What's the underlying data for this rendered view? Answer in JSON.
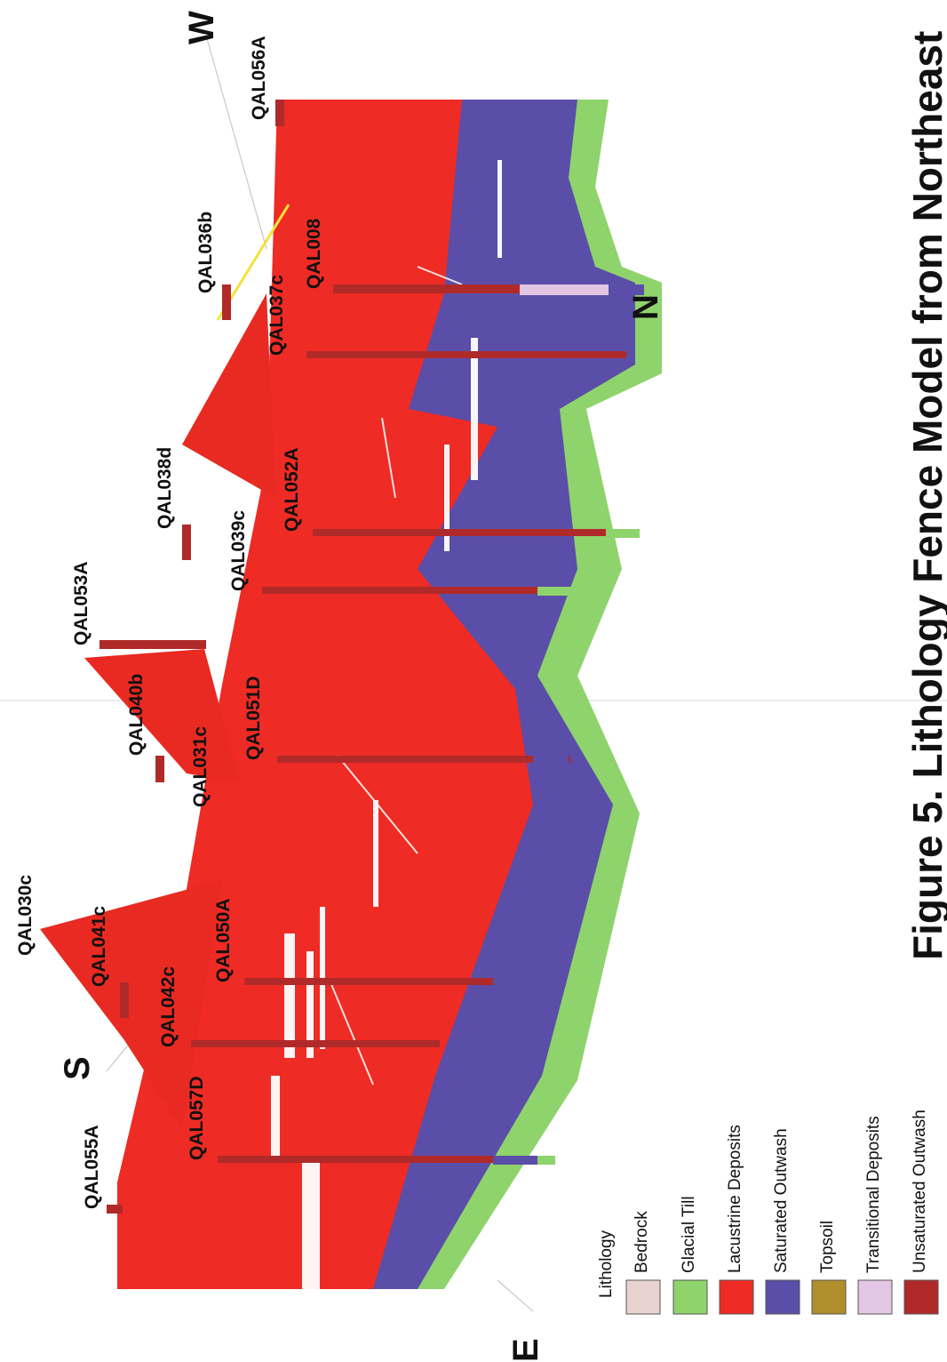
{
  "title": "Figure 5. Lithology Fence Model from Northeast",
  "compass": {
    "w": "W",
    "s": "S",
    "e": "E",
    "n": "N"
  },
  "colors": {
    "lacustrine": "#ee2b24",
    "unsaturated": "#b02a2a",
    "saturated": "#5a4ea8",
    "glacial_till": "#8fd36c",
    "bedrock": "#e8d2cf",
    "topsoil": "#b08e2c",
    "transitional": "#e3c6e3"
  },
  "wells": [
    "QAL056A",
    "QAL036b",
    "QAL008",
    "QAL037c",
    "QAL038d",
    "QAL052A",
    "QAL039c",
    "QAL053A",
    "QAL040b",
    "QAL051D",
    "QAL031c",
    "QAL030c",
    "QAL041c",
    "QAL050A",
    "QAL042c",
    "QAL057D",
    "QAL055A"
  ],
  "legend": {
    "heading": "Lithology",
    "items": [
      {
        "label": "Bedrock",
        "color": "#e8d2cf"
      },
      {
        "label": "Glacial Till",
        "color": "#8fd36c"
      },
      {
        "label": "Lacustrine Deposits",
        "color": "#ee2b24"
      },
      {
        "label": "Saturated Outwash",
        "color": "#5a4ea8"
      },
      {
        "label": "Topsoil",
        "color": "#b08e2c"
      },
      {
        "label": "Transitional Deposits",
        "color": "#e3c6e3"
      },
      {
        "label": "Unsaturated Outwash",
        "color": "#b02a2a"
      }
    ]
  }
}
